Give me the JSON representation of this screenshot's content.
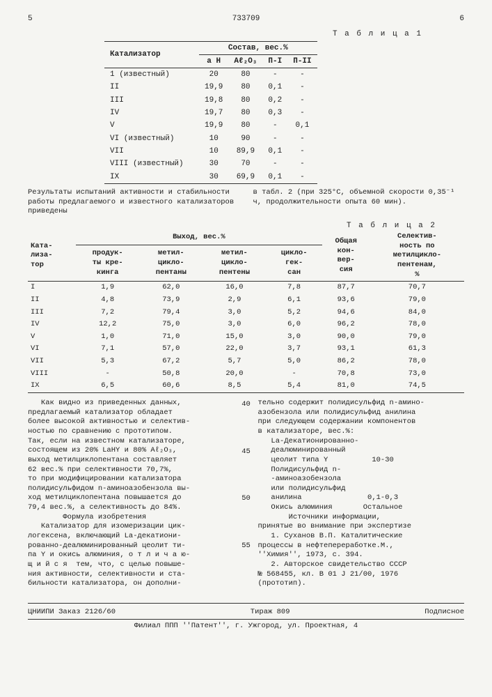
{
  "header": {
    "left_page": "5",
    "doc_number": "733709",
    "right_page": "6"
  },
  "table1": {
    "title": "Т а б л и ц а  1",
    "col_catalyst": "Катализатор",
    "col_group": "Состав, вес.%",
    "cols": [
      "а Н",
      "Aℓ₂O₃",
      "П-I",
      "П-II"
    ],
    "rows": [
      {
        "cat": "1 (известный)",
        "v": [
          "20",
          "80",
          "-",
          "-"
        ]
      },
      {
        "cat": "II",
        "v": [
          "19,9",
          "80",
          "0,1",
          "-"
        ]
      },
      {
        "cat": "III",
        "v": [
          "19,8",
          "80",
          "0,2",
          "-"
        ]
      },
      {
        "cat": "IV",
        "v": [
          "19,7",
          "80",
          "0,3",
          "-"
        ]
      },
      {
        "cat": "V",
        "v": [
          "19,9",
          "80",
          "-",
          "0,1"
        ]
      },
      {
        "cat": "VI (известный)",
        "v": [
          "10",
          "90",
          "-",
          "-"
        ]
      },
      {
        "cat": "VII",
        "v": [
          "10",
          "89,9",
          "0,1",
          "-"
        ]
      },
      {
        "cat": "VIII (известный)",
        "v": [
          "30",
          "70",
          "-",
          "-"
        ]
      },
      {
        "cat": "IX",
        "v": [
          "30",
          "69,9",
          "0,1",
          "-"
        ]
      }
    ]
  },
  "mid": {
    "left": "Результаты испытаний активности и стабильности работы предлагаемого и известного катализаторов приведены",
    "right": "в табл. 2  (при 325°С, объемной скорости 0,35⁻¹ ч, продолжительности опыта 60 мин)."
  },
  "table2": {
    "title": "Т а б л и ц а  2",
    "h_cat": "Ката-\nлиза-\nтор",
    "h_yield": "Выход, вес.%",
    "h_conv": "Общая\nкон-\nвер-\nсия",
    "h_sel": "Селектив-\nность по\nметилцикло-\nпентенам,\n%",
    "sub": [
      "продук-\nты кре-\nкинга",
      "метил-\nцикло-\nпентаны",
      "метил-\nцикло-\nпентены",
      "цикло-\nгек-\nсан"
    ],
    "rows": [
      {
        "c": "I",
        "v": [
          "1,9",
          "62,0",
          "16,0",
          "7,8",
          "87,7",
          "70,7"
        ]
      },
      {
        "c": "II",
        "v": [
          "4,8",
          "73,9",
          "2,9",
          "6,1",
          "93,6",
          "79,0"
        ]
      },
      {
        "c": "III",
        "v": [
          "7,2",
          "79,4",
          "3,0",
          "5,2",
          "94,6",
          "84,0"
        ]
      },
      {
        "c": "IV",
        "v": [
          "12,2",
          "75,0",
          "3,0",
          "6,0",
          "96,2",
          "78,0"
        ]
      },
      {
        "c": "V",
        "v": [
          "1,0",
          "71,0",
          "15,0",
          "3,0",
          "90,0",
          "79,0"
        ]
      },
      {
        "c": "VI",
        "v": [
          "7,1",
          "57,0",
          "22,0",
          "3,7",
          "93,1",
          "61,3"
        ]
      },
      {
        "c": "VII",
        "v": [
          "5,3",
          "67,2",
          "5,7",
          "5,0",
          "86,2",
          "78,0"
        ]
      },
      {
        "c": "VIII",
        "v": [
          "-",
          "50,8",
          "20,0",
          "-",
          "70,8",
          "73,0"
        ]
      },
      {
        "c": "IX",
        "v": [
          "6,5",
          "60,6",
          "8,5",
          "5,4",
          "81,0",
          "74,5"
        ]
      }
    ]
  },
  "linenums": {
    "a": "40",
    "b": "45",
    "c": "50",
    "d": "55"
  },
  "body": {
    "left": "   Как видно из приведенных данных,\nпредлагаемый катализатор обладает\nболее высокой активностью и селектив-\nностью по сравнению с прототипом.\nТак, если на известном катализаторе,\nсостоящем из 20% LaНY и 80% Aℓ₂O₃,\nвыход метилциклопентана составляет\n62 вес.% при селективности 70,7%,\nто при модифицировании катализатора\nполидисульфидом n-аминоазобензола вы-\nход метилциклопентана повышается до\n79,4 вес.%, а селективность до 84%.\n        Формула изобретения\n   Катализатор для изомеризации цик-\nлогексена, включающий La-декатиони-\nрованно-деалюминированный цеолит ти-\nпа Y и окись алюминия, о т л и ч а ю-\nщ и й с я  тем, что, с целью повыше-\nния активности, селективности и ста-\nбильности катализатора, он дополни-",
    "right": "тельно содержит полидисульфид n-амино-\nазобензола или полидисульфид анилина\nпри следующем содержании компонентов\nв катализаторе, вес.%:\n   La-Декатионированно-\n   деалюминированный\n   цеолит типа Y          10-30\n   Полидисульфид n-\n   -аминоазобензола\n   или полидисульфид\n   анилина               0,1-0,3\n   Окись алюминия       Остальное\n       Источники информации,\nпринятые во внимание при экспертизе\n   1. Суханов В.П. Каталитические\nпроцессы в нефтепереработке.М.,\n''Химия'', 1973, с. 394.\n   2. Авторское свидетельство СССР\n№ 568455, кл. B 01 J 21/00, 1976\n(прототип)."
  },
  "footer": {
    "org": "ЦНИИПИ Заказ 2126/60",
    "tirazh": "Тираж 809",
    "sign": "Подписное",
    "addr": "Филиал ППП ''Патент'', г. Ужгород, ул. Проектная, 4"
  }
}
